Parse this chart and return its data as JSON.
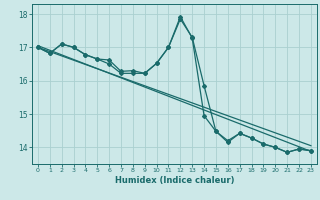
{
  "xlabel": "Humidex (Indice chaleur)",
  "xlim": [
    -0.5,
    23.5
  ],
  "ylim": [
    13.5,
    18.3
  ],
  "yticks": [
    14,
    15,
    16,
    17,
    18
  ],
  "xticks": [
    0,
    1,
    2,
    3,
    4,
    5,
    6,
    7,
    8,
    9,
    10,
    11,
    12,
    13,
    14,
    15,
    16,
    17,
    18,
    19,
    20,
    21,
    22,
    23
  ],
  "background_color": "#cce8e8",
  "grid_color": "#aad0d0",
  "line_color": "#1a6b6b",
  "series1_x": [
    0,
    1,
    2,
    3,
    4,
    5,
    6,
    7,
    8,
    9,
    10,
    11,
    12,
    13,
    14,
    15,
    16,
    17,
    18,
    19,
    20,
    21,
    22,
    23
  ],
  "series1_y": [
    17.0,
    16.82,
    17.1,
    17.0,
    16.78,
    16.65,
    16.62,
    16.28,
    16.3,
    16.22,
    16.52,
    17.0,
    17.85,
    17.3,
    15.85,
    14.48,
    14.15,
    14.42,
    14.28,
    14.1,
    14.0,
    13.85,
    13.95,
    13.9
  ],
  "series2_x": [
    0,
    1,
    2,
    3,
    4,
    5,
    6,
    7,
    8,
    9,
    10,
    11,
    12,
    13,
    14,
    15,
    16,
    17,
    18,
    19,
    20,
    21,
    22,
    23
  ],
  "series2_y": [
    17.0,
    16.82,
    17.1,
    17.0,
    16.78,
    16.65,
    16.5,
    16.22,
    16.22,
    16.22,
    16.52,
    17.0,
    17.92,
    17.28,
    14.95,
    14.48,
    14.2,
    14.42,
    14.28,
    14.1,
    14.0,
    13.85,
    13.95,
    13.9
  ],
  "trend1_x": [
    0,
    23
  ],
  "trend1_y": [
    17.05,
    13.88
  ],
  "trend2_x": [
    0,
    23
  ],
  "trend2_y": [
    17.0,
    14.05
  ]
}
